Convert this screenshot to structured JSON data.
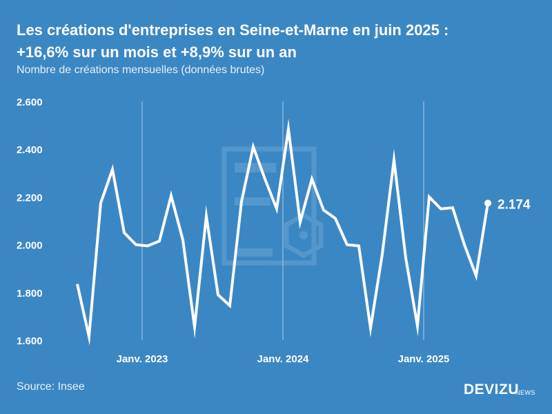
{
  "header": {
    "title_line1": "Les créations d'entreprises en Seine-et-Marne en juin 2025 :",
    "title_line2": "+16,6% sur un mois et +8,9% sur un an",
    "subtitle": "Nombre de créations mensuelles (données brutes)"
  },
  "footer": {
    "source": "Source: Insee",
    "brand": "DEVIZU",
    "brand_sub": "NEWS"
  },
  "chart_data": {
    "type": "line",
    "title": "Les créations d'entreprises en Seine-et-Marne en juin 2025 : +16,6% sur un mois et +8,9% sur un an",
    "subtitle": "Nombre de créations mensuelles (données brutes)",
    "ylim": [
      1600,
      2600
    ],
    "y_ticks": [
      {
        "value": 1600,
        "label": "1.600"
      },
      {
        "value": 1800,
        "label": "1.800"
      },
      {
        "value": 2000,
        "label": "2.000"
      },
      {
        "value": 2200,
        "label": "2.200"
      },
      {
        "value": 2400,
        "label": "2.400"
      },
      {
        "value": 2600,
        "label": "2.600"
      }
    ],
    "x_ticks": [
      {
        "index": 6,
        "label": "Janv. 2023"
      },
      {
        "index": 18,
        "label": "Janv. 2024"
      },
      {
        "index": 30,
        "label": "Janv. 2025"
      }
    ],
    "grid": "vertical lines at year starts",
    "values": [
      1835,
      1615,
      2175,
      2315,
      2050,
      2000,
      1995,
      2015,
      2205,
      2020,
      1655,
      2120,
      1790,
      1745,
      2180,
      2410,
      2275,
      2150,
      2485,
      2095,
      2275,
      2145,
      2110,
      2000,
      1995,
      1650,
      1960,
      2355,
      1945,
      1660,
      2200,
      2150,
      2155,
      2000,
      1870,
      2174
    ],
    "last_value_label": "2.174",
    "colors": {
      "background": "#3b87c4",
      "line": "#ffffff",
      "grid": "#a9cbe6",
      "watermark": "#6aa5d4"
    }
  }
}
